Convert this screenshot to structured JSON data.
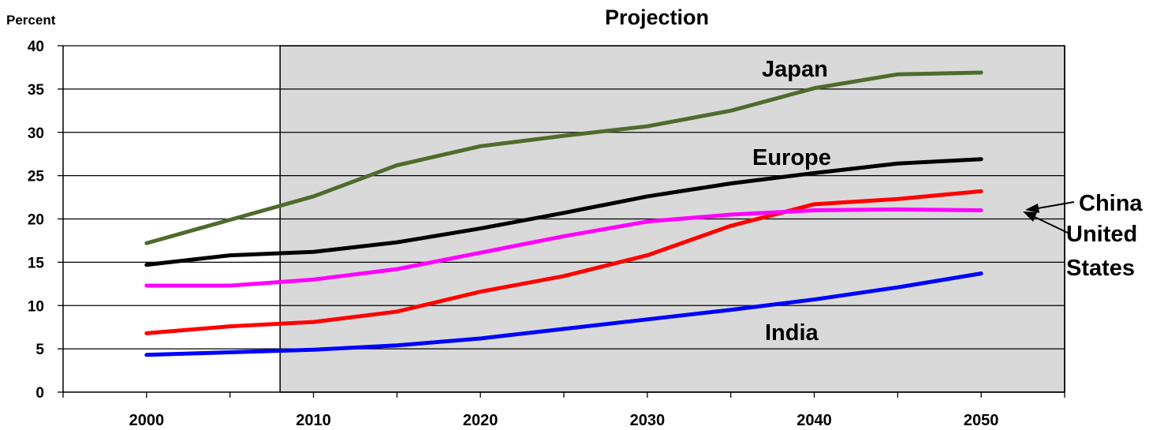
{
  "chart_data": {
    "type": "line",
    "title": "",
    "ylabel": "Percent",
    "xlabel": "",
    "ylim": [
      0,
      40
    ],
    "xlim": [
      1995,
      2055
    ],
    "yticks": [
      0,
      5,
      10,
      15,
      20,
      25,
      30,
      35,
      40
    ],
    "xtick_labels": [
      2000,
      2010,
      2020,
      2030,
      2040,
      2050
    ],
    "grid": "horizontal",
    "projection": {
      "label": "Projection",
      "start": 2008,
      "end": 2055,
      "color": "#d9d9d9"
    },
    "x": [
      2000,
      2005,
      2010,
      2015,
      2020,
      2025,
      2030,
      2035,
      2040,
      2045,
      2050
    ],
    "series": [
      {
        "name": "Japan",
        "color": "#4f6b2d",
        "values": [
          17.2,
          19.9,
          22.6,
          26.2,
          28.4,
          29.6,
          30.7,
          32.5,
          35.1,
          36.7,
          36.9
        ]
      },
      {
        "name": "Europe",
        "color": "#000000",
        "values": [
          14.7,
          15.8,
          16.2,
          17.3,
          18.9,
          20.7,
          22.6,
          24.1,
          25.3,
          26.4,
          26.9
        ]
      },
      {
        "name": "China",
        "color": "#ff0000",
        "values": [
          6.8,
          7.6,
          8.1,
          9.3,
          11.6,
          13.4,
          15.8,
          19.2,
          21.7,
          22.3,
          23.2
        ]
      },
      {
        "name": "United States",
        "color": "#ff00ff",
        "values": [
          12.3,
          12.3,
          13.0,
          14.2,
          16.1,
          18.0,
          19.7,
          20.5,
          21.0,
          21.1,
          21.0
        ]
      },
      {
        "name": "India",
        "color": "#0000ff",
        "values": [
          4.3,
          4.6,
          4.9,
          5.4,
          6.2,
          7.3,
          8.4,
          9.5,
          10.7,
          12.1,
          13.7
        ]
      }
    ],
    "annotations": {
      "japan": "Japan",
      "europe": "Europe",
      "india": "India",
      "china": "China",
      "united_states_line1": "United",
      "united_states_line2": "States"
    }
  }
}
